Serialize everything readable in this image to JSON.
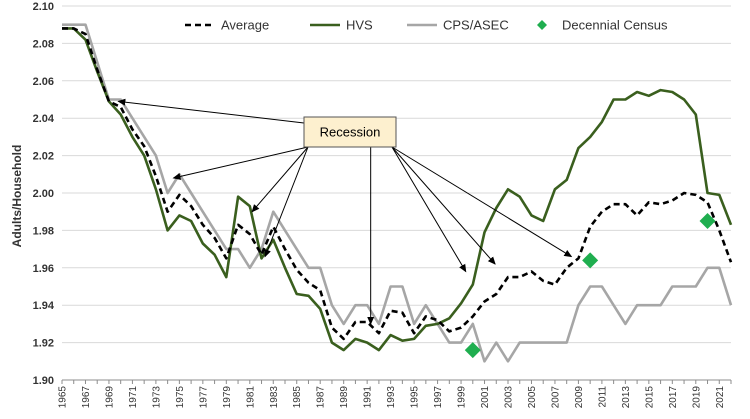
{
  "chart_data": {
    "type": "line",
    "ylabel": "Adults/Household",
    "xlabel": "",
    "ylim": [
      1.9,
      2.1
    ],
    "xlim": [
      1965,
      2022
    ],
    "y_ticks": [
      "1.90",
      "1.92",
      "1.94",
      "1.96",
      "1.98",
      "2.00",
      "2.02",
      "2.04",
      "2.06",
      "2.08",
      "2.10"
    ],
    "x_tick_labels": [
      1965,
      1967,
      1969,
      1971,
      1973,
      1975,
      1977,
      1979,
      1981,
      1983,
      1985,
      1987,
      1989,
      1991,
      1993,
      1995,
      1997,
      1999,
      2001,
      2003,
      2005,
      2007,
      2009,
      2011,
      2013,
      2015,
      2017,
      2019,
      2021
    ],
    "grid": "horizontal",
    "legend_position": "top",
    "colors": {
      "average": "#000000",
      "hvs": "#3a5f1e",
      "cps": "#a6a6a6",
      "census": "#1fae4f",
      "box_fill": "#fdf0cf"
    },
    "series": [
      {
        "name": "Average",
        "style": "dashed",
        "x": [
          1965,
          1966,
          1967,
          1968,
          1969,
          1970,
          1971,
          1972,
          1973,
          1974,
          1975,
          1976,
          1977,
          1978,
          1979,
          1980,
          1981,
          1982,
          1983,
          1984,
          1985,
          1986,
          1987,
          1988,
          1989,
          1990,
          1991,
          1992,
          1993,
          1994,
          1995,
          1996,
          1997,
          1998,
          1999,
          2000,
          2001,
          2002,
          2003,
          2004,
          2005,
          2006,
          2007,
          2008,
          2009,
          2010,
          2011,
          2012,
          2013,
          2014,
          2015,
          2016,
          2017,
          2018,
          2019,
          2020,
          2021,
          2022
        ],
        "values": [
          2.088,
          2.088,
          2.085,
          2.066,
          2.049,
          2.046,
          2.034,
          2.025,
          2.009,
          1.99,
          1.999,
          1.993,
          1.983,
          1.976,
          1.965,
          1.983,
          1.978,
          1.967,
          1.982,
          1.97,
          1.959,
          1.952,
          1.948,
          1.928,
          1.922,
          1.931,
          1.931,
          1.925,
          1.937,
          1.936,
          1.925,
          1.934,
          1.932,
          1.926,
          1.928,
          1.934,
          1.942,
          1.946,
          1.955,
          1.955,
          1.958,
          1.953,
          1.951,
          1.96,
          1.965,
          1.982,
          1.99,
          1.994,
          1.994,
          1.988,
          1.995,
          1.994,
          1.996,
          2.0,
          1.999,
          1.995,
          1.98,
          1.963
        ]
      },
      {
        "name": "HVS",
        "style": "solid",
        "x": [
          1965,
          1966,
          1967,
          1968,
          1969,
          1970,
          1971,
          1972,
          1973,
          1974,
          1975,
          1976,
          1977,
          1978,
          1979,
          1980,
          1981,
          1982,
          1983,
          1984,
          1985,
          1986,
          1987,
          1988,
          1989,
          1990,
          1991,
          1992,
          1993,
          1994,
          1995,
          1996,
          1997,
          1998,
          1999,
          2000,
          2001,
          2002,
          2003,
          2004,
          2005,
          2006,
          2007,
          2008,
          2009,
          2010,
          2011,
          2012,
          2013,
          2014,
          2015,
          2016,
          2017,
          2018,
          2019,
          2020,
          2021,
          2022
        ],
        "values": [
          2.088,
          2.088,
          2.082,
          2.065,
          2.049,
          2.042,
          2.03,
          2.02,
          2.002,
          1.98,
          1.988,
          1.985,
          1.973,
          1.967,
          1.955,
          1.998,
          1.993,
          1.965,
          1.975,
          1.96,
          1.946,
          1.945,
          1.938,
          1.92,
          1.916,
          1.922,
          1.92,
          1.916,
          1.924,
          1.921,
          1.922,
          1.929,
          1.93,
          1.933,
          1.941,
          1.951,
          1.979,
          1.992,
          2.002,
          1.998,
          1.988,
          1.985,
          2.002,
          2.007,
          2.024,
          2.03,
          2.038,
          2.05,
          2.05,
          2.054,
          2.052,
          2.055,
          2.054,
          2.05,
          2.042,
          2.0,
          1.999,
          1.983
        ]
      },
      {
        "name": "CPS/ASEC",
        "style": "solid",
        "x": [
          1965,
          1966,
          1967,
          1968,
          1969,
          1970,
          1971,
          1972,
          1973,
          1974,
          1975,
          1976,
          1977,
          1978,
          1979,
          1980,
          1981,
          1982,
          1983,
          1984,
          1985,
          1986,
          1987,
          1988,
          1989,
          1990,
          1991,
          1992,
          1993,
          1994,
          1995,
          1996,
          1997,
          1998,
          1999,
          2000,
          2001,
          2002,
          2003,
          2004,
          2005,
          2006,
          2007,
          2008,
          2009,
          2010,
          2011,
          2012,
          2013,
          2014,
          2015,
          2016,
          2017,
          2018,
          2019,
          2020,
          2021,
          2022
        ],
        "values": [
          2.09,
          2.09,
          2.09,
          2.07,
          2.05,
          2.05,
          2.04,
          2.03,
          2.02,
          2.0,
          2.01,
          2.0,
          1.99,
          1.98,
          1.97,
          1.97,
          1.96,
          1.97,
          1.99,
          1.98,
          1.97,
          1.96,
          1.96,
          1.94,
          1.93,
          1.94,
          1.94,
          1.93,
          1.95,
          1.95,
          1.93,
          1.94,
          1.93,
          1.92,
          1.92,
          1.93,
          1.91,
          1.92,
          1.91,
          1.92,
          1.92,
          1.92,
          1.92,
          1.92,
          1.94,
          1.95,
          1.95,
          1.94,
          1.93,
          1.94,
          1.94,
          1.94,
          1.95,
          1.95,
          1.95,
          1.96,
          1.96,
          1.94
        ]
      },
      {
        "name": "Decennial Census",
        "style": "markers",
        "x": [
          2000,
          2010,
          2020
        ],
        "values": [
          1.916,
          1.964,
          1.985
        ]
      }
    ],
    "annotation": {
      "label": "Recession",
      "arrow_targets": [
        {
          "x": 1969.8,
          "y": 2.049
        },
        {
          "x": 1974.5,
          "y": 2.008
        },
        {
          "x": 1981.2,
          "y": 1.99
        },
        {
          "x": 1982.3,
          "y": 1.966
        },
        {
          "x": 1991.3,
          "y": 1.93
        },
        {
          "x": 1999.4,
          "y": 1.958
        },
        {
          "x": 2001.9,
          "y": 1.962
        },
        {
          "x": 2008.4,
          "y": 1.966
        }
      ]
    }
  }
}
